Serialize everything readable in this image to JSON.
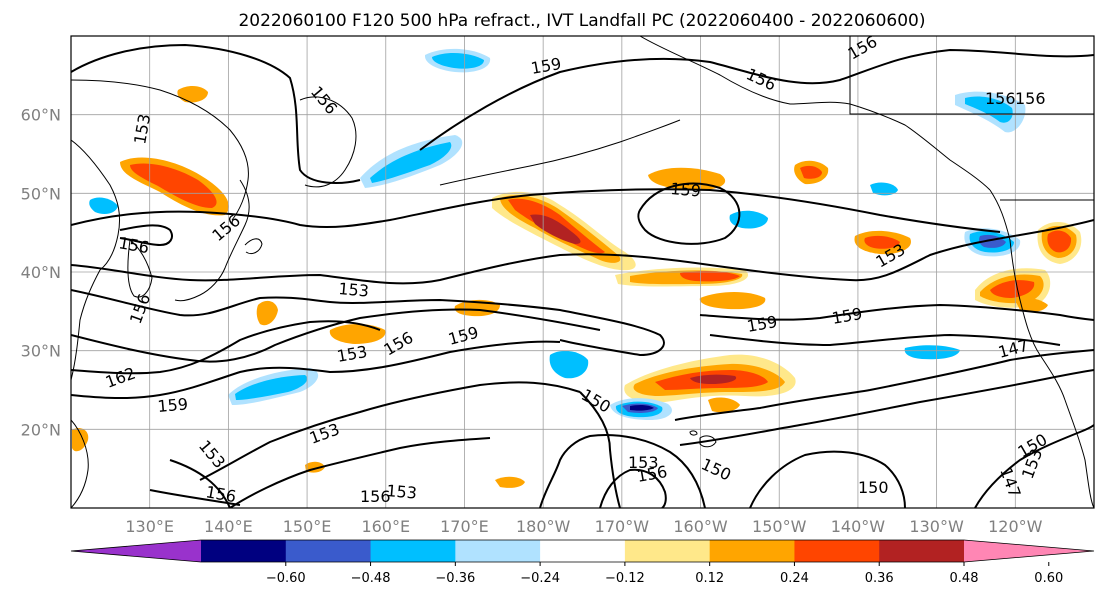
{
  "figure": {
    "title": "2022060100 F120 500 hPa refract., IVT Landfall PC (2022060400 - 2022060600)"
  },
  "map": {
    "projection": "PlateCarree",
    "lon_range": [
      120,
      250
    ],
    "lat_range": [
      10,
      70
    ],
    "frame_color": "#000000",
    "grid_color": "#a0a0a0",
    "land_outline_color": "#000000",
    "lon_ticks": [
      {
        "lon": 130,
        "label": "130°E"
      },
      {
        "lon": 140,
        "label": "140°E"
      },
      {
        "lon": 150,
        "label": "150°E"
      },
      {
        "lon": 160,
        "label": "160°E"
      },
      {
        "lon": 170,
        "label": "170°E"
      },
      {
        "lon": 180,
        "label": "180°W"
      },
      {
        "lon": 190,
        "label": "170°W"
      },
      {
        "lon": 200,
        "label": "160°W"
      },
      {
        "lon": 210,
        "label": "150°W"
      },
      {
        "lon": 220,
        "label": "140°W"
      },
      {
        "lon": 230,
        "label": "130°W"
      },
      {
        "lon": 240,
        "label": "120°W"
      }
    ],
    "lat_ticks": [
      {
        "lat": 20,
        "label": "20°N"
      },
      {
        "lat": 30,
        "label": "30°N"
      },
      {
        "lat": 40,
        "label": "40°N"
      },
      {
        "lat": 50,
        "label": "50°N"
      },
      {
        "lat": 60,
        "label": "60°N"
      }
    ]
  },
  "colorbar": {
    "colors": [
      "#9932cc",
      "#000080",
      "#3a5bcc",
      "#00bfff",
      "#b0e2ff",
      "#ffffff",
      "#ffe88a",
      "#ffa500",
      "#ff4500",
      "#b22222",
      "#ff86b4"
    ],
    "tick_labels": [
      "−0.60",
      "−0.48",
      "−0.36",
      "−0.24",
      "−0.12",
      "0.12",
      "0.24",
      "0.36",
      "0.48",
      "0.60"
    ],
    "extend": "both"
  },
  "contour_labels": [
    "156",
    "159",
    "156",
    "156",
    "153",
    "156",
    "156",
    "159",
    "153",
    "153",
    "156",
    "159",
    "162",
    "159",
    "153",
    "153",
    "150",
    "153",
    "156",
    "150",
    "156",
    "153",
    "156",
    "147",
    "150",
    "150",
    "147",
    "153",
    "159",
    "159",
    "156",
    "153",
    "156",
    "156"
  ],
  "legend_colors": {
    "positive_levels": [
      "#ffe88a",
      "#ffa500",
      "#ff4500",
      "#b22222"
    ],
    "negative_levels": [
      "#b0e2ff",
      "#00bfff",
      "#3a5bcc",
      "#000080"
    ]
  }
}
